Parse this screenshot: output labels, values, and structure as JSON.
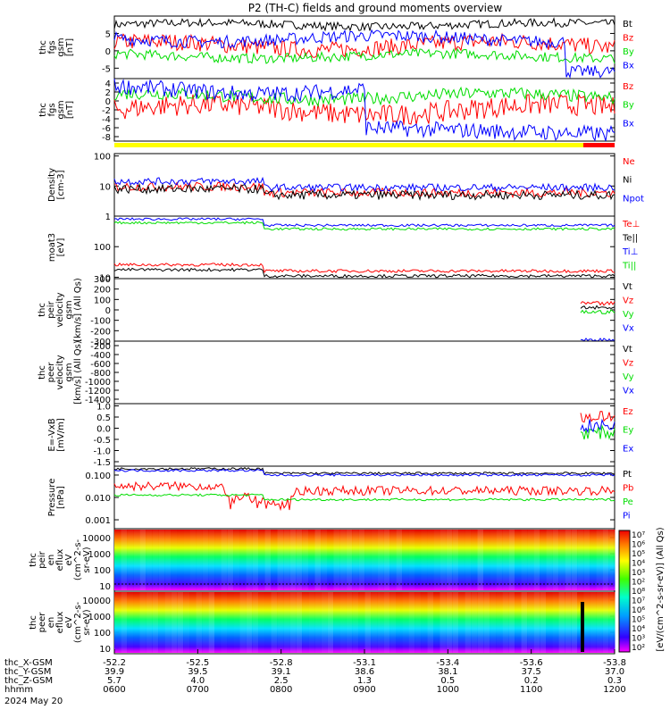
{
  "title": "P2 (TH-C) fields and ground moments overview",
  "colors": {
    "black": "#000000",
    "red": "#ff0000",
    "green": "#00dd00",
    "blue": "#0000ff",
    "yellow": "#ffff00"
  },
  "chart_data": [
    {
      "type": "line",
      "panel": "fgs_gsm",
      "ylabel": [
        "thc",
        "fgs",
        "gsm",
        "[nT]"
      ],
      "yticks": [
        "5",
        "0",
        "-5"
      ],
      "ylim": [
        -8,
        10
      ],
      "series": [
        {
          "name": "Bt",
          "color": "black"
        },
        {
          "name": "Bz",
          "color": "red"
        },
        {
          "name": "By",
          "color": "green"
        },
        {
          "name": "Bx",
          "color": "blue"
        }
      ]
    },
    {
      "type": "line",
      "panel": "fgs_gsm_dsl",
      "ylabel": [
        "thc",
        "fgs",
        "gsm",
        "[nT]"
      ],
      "yticks": [
        "4",
        "2",
        "0",
        "-2",
        "-4",
        "-6",
        "-8"
      ],
      "ylim": [
        -9,
        5
      ],
      "series": [
        {
          "name": "Bz",
          "color": "red"
        },
        {
          "name": "By",
          "color": "green"
        },
        {
          "name": "Bx",
          "color": "blue"
        }
      ]
    },
    {
      "type": "line",
      "panel": "density",
      "ylabel": [
        "Density",
        "[cm-3]"
      ],
      "yticks": [
        "100",
        "10",
        "1"
      ],
      "yscale": "log",
      "ylim": [
        1,
        120
      ],
      "series": [
        {
          "name": "Ne",
          "color": "red"
        },
        {
          "name": "Ni",
          "color": "black"
        },
        {
          "name": "Npot",
          "color": "blue"
        }
      ]
    },
    {
      "type": "line",
      "panel": "temperature",
      "ylabel": [
        "moat3",
        "[eV]"
      ],
      "yticks": [
        "100",
        "10"
      ],
      "yscale": "log",
      "ylim": [
        9,
        1000
      ],
      "series": [
        {
          "name": "Te⊥",
          "color": "red"
        },
        {
          "name": "Te||",
          "color": "black"
        },
        {
          "name": "Ti⊥",
          "color": "blue"
        },
        {
          "name": "Ti||",
          "color": "green"
        }
      ]
    },
    {
      "type": "line",
      "panel": "peir_velocity",
      "ylabel": [
        "thc",
        "peir",
        "velocity",
        "gsm",
        "[km/s] (All Qs)"
      ],
      "yticks": [
        "300",
        "200",
        "100",
        "0",
        "-100",
        "-200",
        "-300"
      ],
      "ylim": [
        -300,
        300
      ],
      "series": [
        {
          "name": "Vt",
          "color": "black"
        },
        {
          "name": "Vz",
          "color": "red"
        },
        {
          "name": "Vy",
          "color": "green"
        },
        {
          "name": "Vx",
          "color": "blue"
        }
      ]
    },
    {
      "type": "line",
      "panel": "peer_velocity",
      "ylabel": [
        "thc",
        "peer",
        "velocity",
        "gsm",
        "[km/s] (All Qs)"
      ],
      "yticks": [
        "-200",
        "-400",
        "-600",
        "-800",
        "-1000",
        "-1200",
        "-1400"
      ],
      "ylim": [
        -1500,
        -100
      ],
      "series": [
        {
          "name": "Vt",
          "color": "black"
        },
        {
          "name": "Vz",
          "color": "red"
        },
        {
          "name": "Vy",
          "color": "green"
        },
        {
          "name": "Vx",
          "color": "blue"
        }
      ]
    },
    {
      "type": "line",
      "panel": "efield",
      "ylabel": [
        "E=-VxB",
        "[mV/m]"
      ],
      "yticks": [
        "1.0",
        "0.5",
        "0.0",
        "-0.5",
        "-1.0",
        "-1.5"
      ],
      "ylim": [
        -1.7,
        1.1
      ],
      "series": [
        {
          "name": "Ez",
          "color": "red"
        },
        {
          "name": "Ey",
          "color": "green"
        },
        {
          "name": "Ex",
          "color": "blue"
        }
      ]
    },
    {
      "type": "line",
      "panel": "pressure",
      "ylabel": [
        "Pressure",
        "[nPa]"
      ],
      "yticks": [
        "0.100",
        "0.010",
        "0.001"
      ],
      "yscale": "log",
      "ylim": [
        0.0004,
        0.25
      ],
      "series": [
        {
          "name": "Pt",
          "color": "black"
        },
        {
          "name": "Pb",
          "color": "red"
        },
        {
          "name": "Pe",
          "color": "green"
        },
        {
          "name": "Pi",
          "color": "blue"
        }
      ]
    },
    {
      "type": "heatmap",
      "panel": "peir_spectrogram",
      "ylabel": [
        "thc",
        "peir",
        "en",
        "eflux",
        "eV",
        "(cm^2-s-",
        "sr-eV)"
      ],
      "yticks": [
        "10000",
        "1000",
        "100",
        "10"
      ],
      "yscale": "log"
    },
    {
      "type": "heatmap",
      "panel": "peer_spectrogram",
      "ylabel": [
        "thc",
        "peer",
        "en",
        "eflux",
        "eV",
        "(cm^2-s-",
        "sr-eV)"
      ],
      "yticks": [
        "10000",
        "1000",
        "100",
        "10"
      ],
      "yscale": "log"
    }
  ],
  "colorbar": {
    "ticks": [
      "10⁷",
      "10⁶",
      "10⁵",
      "10⁴",
      "10³",
      "10²",
      "10⁸",
      "10⁷",
      "10⁶",
      "10⁵",
      "10⁴",
      "10³",
      "10²"
    ],
    "label": "[eV/(cm^2-s-sr-eV)] (All Qs)"
  },
  "xaxis": {
    "rows": [
      {
        "label": "thc_X-GSM",
        "values": [
          "-52.2",
          "-52.5",
          "-52.8",
          "-53.1",
          "-53.4",
          "-53.6",
          "-53.8"
        ]
      },
      {
        "label": "thc_Y-GSM",
        "values": [
          "39.9",
          "39.5",
          "39.1",
          "38.6",
          "38.1",
          "37.5",
          "37.0"
        ]
      },
      {
        "label": "thc_Z-GSM",
        "values": [
          "5.7",
          "4.0",
          "2.5",
          "1.3",
          "0.5",
          "0.2",
          "0.3"
        ]
      },
      {
        "label": "hhmm",
        "values": [
          "0600",
          "0700",
          "0800",
          "0900",
          "1000",
          "1100",
          "1200"
        ]
      }
    ],
    "date": "2024 May 20"
  }
}
